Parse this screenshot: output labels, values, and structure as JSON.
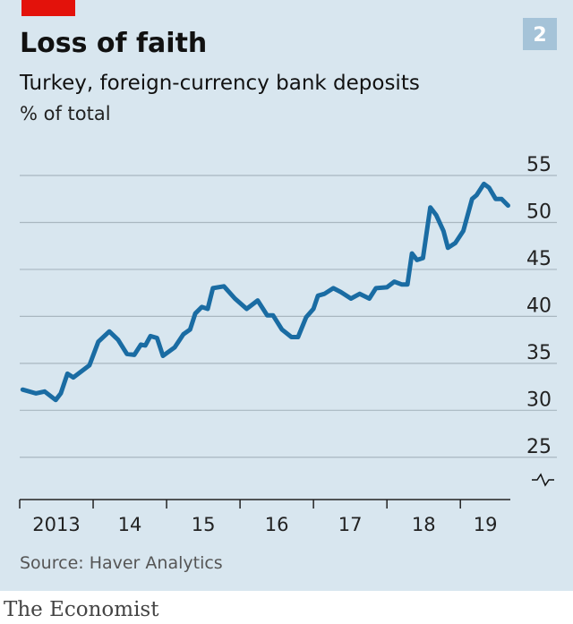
{
  "chart_data": {
    "type": "line",
    "title": "Loss of faith",
    "badge": "2",
    "subtitle": "Turkey, foreign-currency bank deposits",
    "unit_label": "% of total",
    "source": "Source: Haver Analytics",
    "brand": "The Economist",
    "x": [
      2013.04,
      2013.22,
      2013.34,
      2013.49,
      2013.56,
      2013.65,
      2013.73,
      2013.95,
      2014.07,
      2014.22,
      2014.34,
      2014.46,
      2014.56,
      2014.65,
      2014.71,
      2014.78,
      2014.87,
      2014.95,
      2015.11,
      2015.23,
      2015.32,
      2015.39,
      2015.48,
      2015.56,
      2015.63,
      2015.78,
      2015.93,
      2016.09,
      2016.24,
      2016.37,
      2016.45,
      2016.57,
      2016.7,
      2016.79,
      2016.9,
      2017.0,
      2017.06,
      2017.15,
      2017.27,
      2017.37,
      2017.51,
      2017.63,
      2017.76,
      2017.85,
      2018.0,
      2018.1,
      2018.2,
      2018.28,
      2018.34,
      2018.41,
      2018.49,
      2018.59,
      2018.67,
      2018.77,
      2018.83,
      2018.93,
      2019.04,
      2019.16,
      2019.22,
      2019.32,
      2019.39,
      2019.48,
      2019.56,
      2019.65
    ],
    "series": [
      {
        "color": "#1a6ca3",
        "values": [
          32.2,
          31.8,
          32.0,
          31.1,
          31.8,
          33.9,
          33.5,
          34.8,
          37.3,
          38.4,
          37.5,
          36.0,
          35.9,
          37.0,
          36.9,
          37.9,
          37.7,
          35.8,
          36.7,
          38.1,
          38.6,
          40.3,
          41.0,
          40.8,
          43.0,
          43.2,
          41.9,
          40.8,
          41.7,
          40.1,
          40.1,
          38.6,
          37.8,
          37.8,
          39.9,
          40.8,
          42.2,
          42.4,
          43.0,
          42.6,
          41.9,
          42.4,
          41.9,
          43.0,
          43.1,
          43.7,
          43.4,
          43.4,
          46.7,
          46.0,
          46.2,
          51.6,
          50.8,
          49.1,
          47.3,
          47.8,
          49.1,
          52.5,
          52.9,
          54.1,
          53.7,
          52.5,
          52.5,
          51.8
        ]
      }
    ],
    "xlim": [
      2013,
      2019.68
    ],
    "xticks": [
      2013,
      {
        "value": 2014,
        "label": "14"
      },
      {
        "value": 2015,
        "label": "15"
      },
      {
        "value": 2016,
        "label": "16"
      },
      {
        "value": 2017,
        "label": "17"
      },
      {
        "value": 2018,
        "label": "18"
      },
      {
        "value": 2019,
        "label": "19"
      }
    ],
    "ylim": [
      20.5,
      55
    ],
    "yticks": [
      25,
      30,
      35,
      40,
      45,
      50,
      55
    ],
    "grid": true
  }
}
